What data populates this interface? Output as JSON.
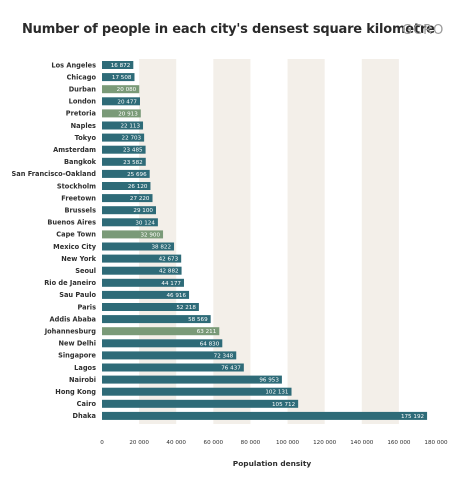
{
  "logo_text": "GCRO",
  "colors": {
    "bar": "#2e6b78",
    "highlight": "#7a9a78",
    "band": "#f3efe9",
    "text": "#2e2e2e"
  },
  "chart_data": {
    "type": "bar",
    "orientation": "horizontal",
    "title": "Number of people in each city's densest square kilometre",
    "xlabel": "Population density",
    "ylabel": "",
    "xlim": [
      0,
      180000
    ],
    "xticks": [
      0,
      20000,
      40000,
      60000,
      80000,
      100000,
      120000,
      140000,
      160000,
      180000
    ],
    "xtick_labels": [
      "0",
      "20 000",
      "40 000",
      "60 000",
      "80 000",
      "100 000",
      "120 000",
      "140 000",
      "160 000",
      "180 000"
    ],
    "categories": [
      "Los Angeles",
      "Chicago",
      "Durban",
      "London",
      "Pretoria",
      "Naples",
      "Tokyo",
      "Amsterdam",
      "Bangkok",
      "San Francisco-Oakland",
      "Stockholm",
      "Freetown",
      "Brussels",
      "Buenos Aires",
      "Cape Town",
      "Mexico City",
      "New York",
      "Seoul",
      "Rio de Janeiro",
      "Sau Paulo",
      "Paris",
      "Addis Ababa",
      "Johannesburg",
      "New Delhi",
      "Singapore",
      "Lagos",
      "Nairobi",
      "Hong Kong",
      "Cairo",
      "Dhaka"
    ],
    "values": [
      16872,
      17508,
      20080,
      20477,
      20913,
      22113,
      22703,
      23485,
      23582,
      25696,
      26120,
      27220,
      29100,
      30124,
      32900,
      38822,
      42673,
      42882,
      44177,
      46916,
      52218,
      58569,
      63211,
      64830,
      72348,
      76437,
      96953,
      102131,
      105712,
      175192
    ],
    "value_labels": [
      "16 872",
      "17 508",
      "20 080",
      "20 477",
      "20 913",
      "22 113",
      "22 703",
      "23 485",
      "23 582",
      "25 696",
      "26 120",
      "27 220",
      "29 100",
      "30 124",
      "32 900",
      "38 822",
      "42 673",
      "42 882",
      "44 177",
      "46 916",
      "52 218",
      "58 569",
      "63 211",
      "64 830",
      "72 348",
      "76 437",
      "96 953",
      "102 131",
      "105 712",
      "175 192"
    ],
    "highlighted": [
      "Durban",
      "Pretoria",
      "Cape Town",
      "Johannesburg"
    ],
    "grid": "alternating vertical bands",
    "legend": "none"
  }
}
